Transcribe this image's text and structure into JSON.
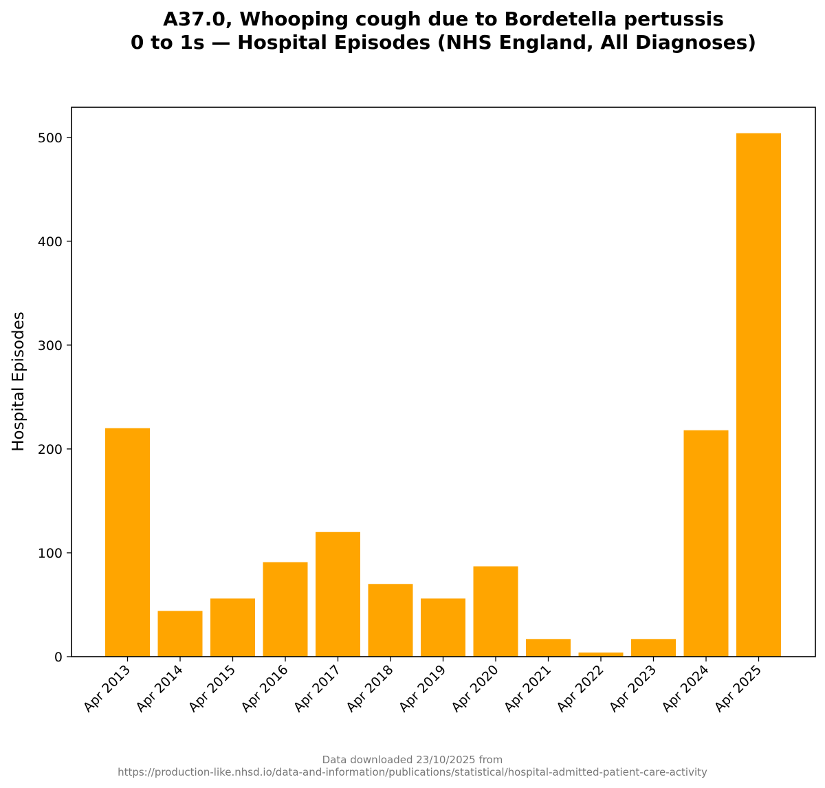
{
  "chart_data": {
    "type": "bar",
    "title_lines": [
      "A37.0,  Whooping cough due to Bordetella pertussis",
      "0 to 1s — Hospital Episodes (NHS England, All Diagnoses)"
    ],
    "xlabel": "",
    "ylabel": "Hospital Episodes",
    "categories": [
      "Apr 2013",
      "Apr 2014",
      "Apr 2015",
      "Apr 2016",
      "Apr 2017",
      "Apr 2018",
      "Apr 2019",
      "Apr 2020",
      "Apr 2021",
      "Apr 2022",
      "Apr 2023",
      "Apr 2024",
      "Apr 2025"
    ],
    "values": [
      220,
      44,
      56,
      91,
      120,
      70,
      56,
      87,
      17,
      4,
      17,
      218,
      504
    ],
    "ylim": [
      0,
      529
    ],
    "yticks": [
      0,
      100,
      200,
      300,
      400,
      500
    ],
    "grid": false,
    "legend": "none",
    "bar_color": "#FFA500"
  },
  "footer": {
    "line1": "Data downloaded 23/10/2025 from",
    "line2": "https://production-like.nhsd.io/data-and-information/publications/statistical/hospital-admitted-patient-care-activity"
  }
}
